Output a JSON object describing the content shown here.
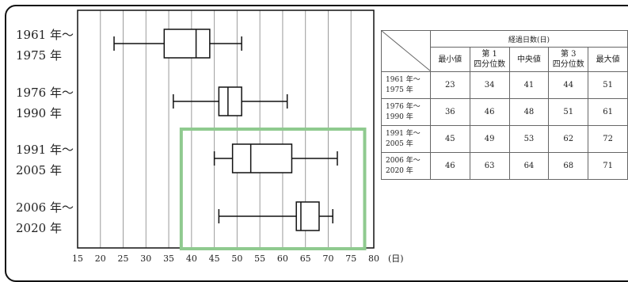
{
  "chart_data": {
    "type": "boxplot",
    "categories": [
      "1961 年～\n1975 年",
      "1976 年～\n1990 年",
      "1991 年～\n2005 年",
      "2006 年～\n2020 年"
    ],
    "boxes": [
      {
        "min": 23,
        "q1": 34,
        "median": 41,
        "q3": 44,
        "max": 51
      },
      {
        "min": 36,
        "q1": 46,
        "median": 48,
        "q3": 51,
        "max": 61
      },
      {
        "min": 45,
        "q1": 49,
        "median": 53,
        "q3": 62,
        "max": 72
      },
      {
        "min": 46,
        "q1": 63,
        "median": 64,
        "q3": 68,
        "max": 71
      }
    ],
    "xticks": [
      "15",
      "20",
      "25",
      "30",
      "35",
      "40",
      "45",
      "50",
      "55",
      "60",
      "65",
      "70",
      "75",
      "80"
    ],
    "xlim": [
      15,
      80
    ],
    "xunit": "(日)",
    "grid": true,
    "highlight": {
      "x_from": 40,
      "x_to": 78,
      "rows": [
        2,
        3
      ],
      "color": "#8fca8f"
    }
  },
  "table": {
    "span_header": "経過日数(日)",
    "columns": [
      "最小値",
      "第 1\n四分位数",
      "中央値",
      "第 3\n四分位数",
      "最大値"
    ],
    "rows": [
      {
        "label": "1961 年～\n1975 年",
        "values": [
          "23",
          "34",
          "41",
          "44",
          "51"
        ]
      },
      {
        "label": "1976 年～\n1990 年",
        "values": [
          "36",
          "46",
          "48",
          "51",
          "61"
        ]
      },
      {
        "label": "1991 年～\n2005 年",
        "values": [
          "45",
          "49",
          "53",
          "62",
          "72"
        ]
      },
      {
        "label": "2006 年～\n2020 年",
        "values": [
          "46",
          "63",
          "64",
          "68",
          "71"
        ]
      }
    ]
  }
}
